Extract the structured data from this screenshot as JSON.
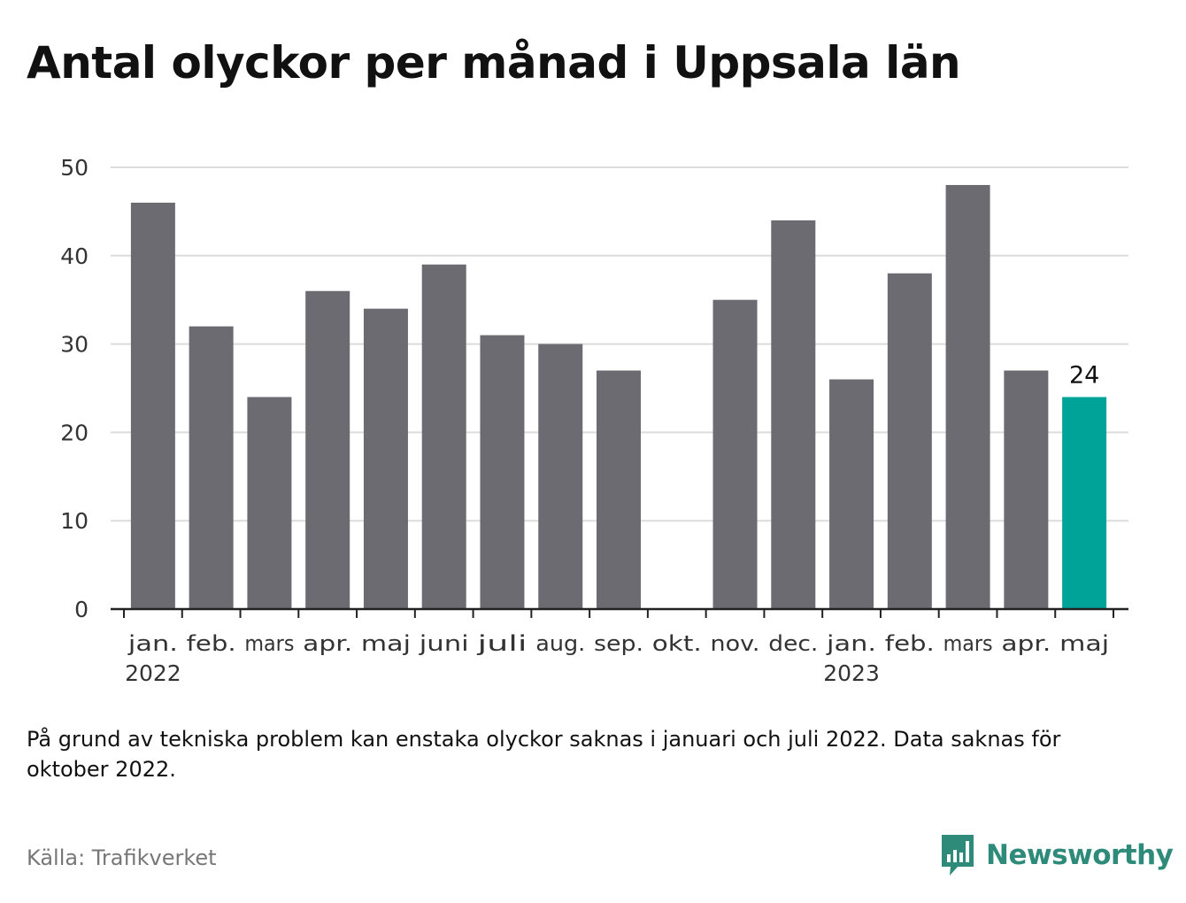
{
  "title": "Antal olyckor per månad i Uppsala län",
  "note": "På grund av tekniska problem kan enstaka olyckor saknas i januari och juli 2022. Data saknas för oktober 2022.",
  "source": "Källa: Trafikverket",
  "brand": {
    "name": "Newsworthy",
    "icon": "newsworthy-logo-icon",
    "color": "#2e8b7a"
  },
  "colors": {
    "bar": "#6c6b72",
    "highlight": "#00a398",
    "grid": "#dcdcdc",
    "axis": "#222222"
  },
  "chart_data": {
    "type": "bar",
    "categories": [
      "jan.",
      "feb.",
      "mars",
      "apr.",
      "maj",
      "juni",
      "juli",
      "aug.",
      "sep.",
      "okt.",
      "nov.",
      "dec.",
      "jan.",
      "feb.",
      "mars",
      "apr.",
      "maj"
    ],
    "year_labels": [
      {
        "index": 0,
        "label": "2022"
      },
      {
        "index": 12,
        "label": "2023"
      }
    ],
    "values": [
      46,
      32,
      24,
      36,
      34,
      39,
      31,
      30,
      27,
      null,
      35,
      44,
      26,
      38,
      48,
      27,
      24
    ],
    "highlight_index": 16,
    "highlight_label": "24",
    "yticks": [
      0,
      10,
      20,
      30,
      40,
      50
    ],
    "ylim": [
      0,
      50
    ],
    "grid": true,
    "xlabel": "",
    "ylabel": ""
  }
}
